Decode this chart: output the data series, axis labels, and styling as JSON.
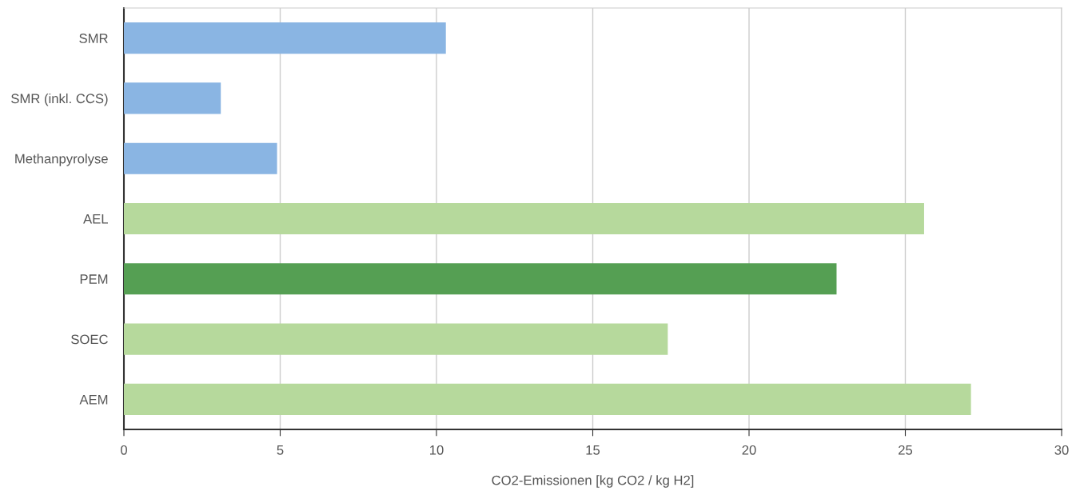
{
  "chart_data": {
    "type": "bar",
    "orientation": "horizontal",
    "xlabel": "CO2-Emissionen [kg CO2 / kg H2]",
    "categories": [
      "SMR",
      "SMR (inkl. CCS)",
      "Methanpyrolyse",
      "AEL",
      "PEM",
      "SOEC",
      "AEM"
    ],
    "values": [
      10.3,
      3.1,
      4.9,
      25.6,
      22.8,
      17.4,
      27.1
    ],
    "colors": [
      "#8ab5e3",
      "#8ab5e3",
      "#8ab5e3",
      "#b6d99c",
      "#559f53",
      "#b6d99c",
      "#b6d99c"
    ],
    "xlim": [
      0,
      30
    ],
    "xticks": [
      0,
      5,
      10,
      15,
      20,
      25,
      30
    ],
    "grid": "x",
    "legend": false
  }
}
